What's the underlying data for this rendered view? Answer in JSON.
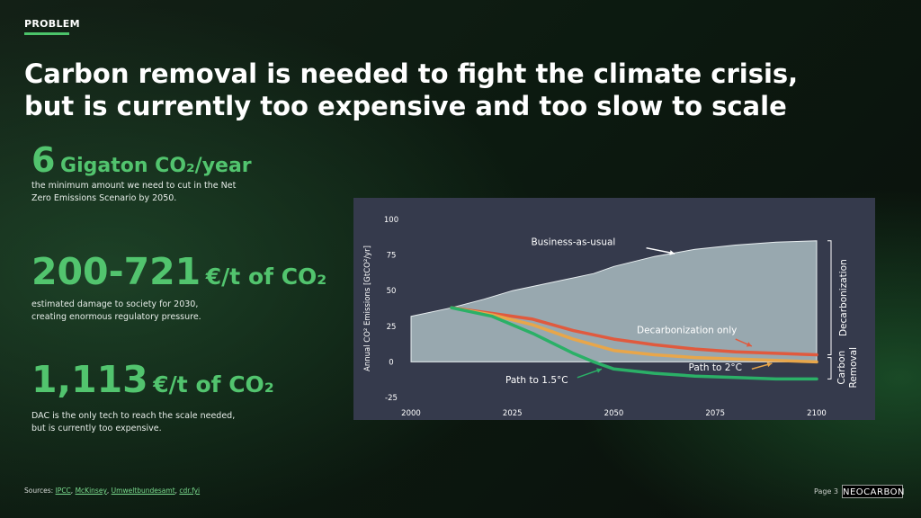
{
  "header": {
    "kicker": "PROBLEM",
    "title_line1": "Carbon removal is needed to fight the climate crisis,",
    "title_line2": "but is currently too expensive and too slow to scale"
  },
  "stats": [
    {
      "number": "6",
      "unit": "Gigaton CO₂/year",
      "desc": "the minimum amount we need to cut in the Net Zero Emissions Scenario by 2050."
    },
    {
      "number": "200-721",
      "unit": "€/t of CO₂",
      "desc_line1": "estimated damage to society for 2030,",
      "desc_line2": "creating enormous regulatory pressure."
    },
    {
      "number": "1,113",
      "unit": "€/t of CO₂",
      "desc_line1": "DAC is the only tech to reach the scale needed,",
      "desc_line2": "but is currently too expensive."
    }
  ],
  "footer": {
    "sources_label": "Sources: ",
    "sources": [
      "IPCC",
      "McKinsey",
      "Umweltbundesamt",
      "cdr.fyi"
    ],
    "page": "Page 3",
    "logo": "NEOCARBON"
  },
  "colors": {
    "accent": "#52c46e",
    "chart_bg": "#353a4c",
    "bau_fill": "#a9bcc1",
    "decarb_only": "#e05a3e",
    "path_2c": "#e8a64a",
    "path_15c": "#2bb067"
  },
  "chart_data": {
    "type": "area",
    "ylabel": "Annual CO² Emissions [GtCO²/yr]",
    "xlabel": "",
    "xlim": [
      2000,
      2100
    ],
    "ylim": [
      -25,
      100
    ],
    "x_ticks": [
      2000,
      2025,
      2050,
      2075,
      2100
    ],
    "y_ticks": [
      -25,
      0,
      25,
      50,
      75,
      100
    ],
    "grid": false,
    "series": [
      {
        "name": "Business-as-usual",
        "type": "area",
        "x": [
          2000,
          2010,
          2018,
          2025,
          2035,
          2045,
          2050,
          2060,
          2070,
          2080,
          2090,
          2100
        ],
        "values": [
          32,
          38,
          44,
          50,
          56,
          62,
          67,
          74,
          79,
          82,
          84,
          85
        ]
      },
      {
        "name": "Decarbonization only",
        "x": [
          2010,
          2020,
          2030,
          2040,
          2050,
          2060,
          2070,
          2080,
          2090,
          2100
        ],
        "values": [
          38,
          34,
          30,
          22,
          16,
          12,
          9,
          7,
          6,
          5
        ]
      },
      {
        "name": "Path to 2°C",
        "x": [
          2010,
          2020,
          2030,
          2040,
          2050,
          2060,
          2070,
          2080,
          2090,
          2100
        ],
        "values": [
          38,
          33,
          26,
          16,
          8,
          5,
          3,
          2,
          1,
          0
        ]
      },
      {
        "name": "Path to 1.5°C",
        "x": [
          2010,
          2020,
          2030,
          2040,
          2045,
          2050,
          2060,
          2070,
          2080,
          2090,
          2100
        ],
        "values": [
          38,
          32,
          20,
          6,
          0,
          -5,
          -8,
          -10,
          -11,
          -12,
          -12
        ]
      }
    ],
    "bracket_labels": [
      "Decarbonization",
      "Carbon Removal"
    ]
  }
}
